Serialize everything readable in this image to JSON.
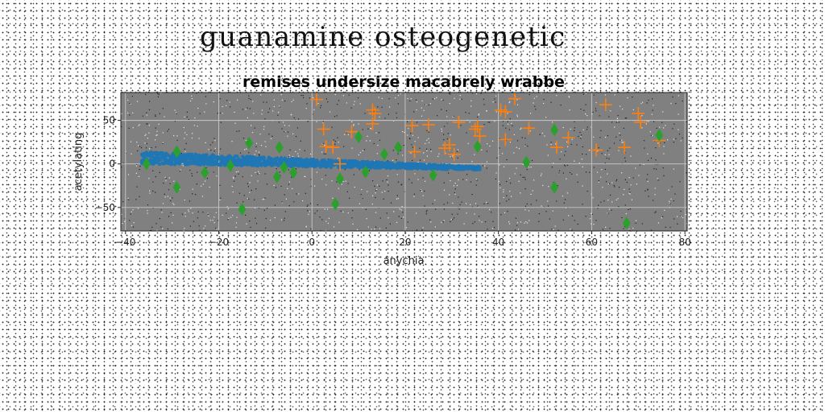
{
  "page_title": "guanamine osteogenetic",
  "colors": {
    "plot_background": "#808080",
    "grid": "#c8c8c8",
    "series_band": "#1f77b4",
    "series_plus": "#ff7f0e",
    "series_diamond": "#2ca02c"
  },
  "chart_data": {
    "type": "scatter",
    "title": "remises undersize macabrely wrabbe",
    "xlabel": "anychia",
    "ylabel": "acetylating",
    "xlim": [
      -41,
      80.5
    ],
    "ylim": [
      -77,
      82
    ],
    "xticks": [
      -40,
      -20,
      0,
      20,
      40,
      60,
      80
    ],
    "yticks": [
      -50,
      0,
      50
    ],
    "grid": true,
    "legend": "none",
    "series": [
      {
        "marker": "band",
        "color": "#1f77b4",
        "band": {
          "x_start": -36.5,
          "x_end": 36,
          "y_center_start": 7,
          "y_center_end": -5,
          "half_width_start": 7,
          "half_width_end": 2
        }
      },
      {
        "marker": "plus",
        "color": "#ff7f0e",
        "x": [
          1,
          2.5,
          3,
          4.5,
          6,
          8.5,
          13,
          13.5,
          13,
          21.5,
          22,
          25,
          28.5,
          29.5,
          30.5,
          31.5,
          35,
          35.5,
          36,
          40.5,
          41.5,
          41.5,
          43.5,
          46.5,
          52.5,
          55,
          61,
          63,
          67,
          70,
          70.5,
          74.5
        ],
        "y": [
          74,
          40,
          20,
          19,
          0,
          37,
          62,
          58,
          46,
          44,
          14,
          45,
          18,
          22,
          11,
          48,
          40,
          43,
          32,
          62,
          60,
          28,
          75,
          41,
          19,
          30,
          16,
          68,
          19,
          58,
          48,
          27
        ]
      },
      {
        "marker": "diamond",
        "color": "#2ca02c",
        "x": [
          -35.5,
          -29,
          -29,
          -23,
          -17.5,
          -15,
          -13.5,
          -7.5,
          -7,
          -6,
          -4,
          5,
          6,
          10,
          11.5,
          15.5,
          18.5,
          26,
          35.5,
          46,
          52,
          52,
          67.5,
          74.5
        ],
        "y": [
          0,
          14,
          -27,
          -10,
          -2,
          -52,
          24,
          -15,
          19,
          -4,
          -10,
          -46,
          -17,
          31,
          -9,
          11,
          19,
          -13,
          20,
          2,
          39,
          -27,
          -68,
          33
        ]
      }
    ]
  }
}
